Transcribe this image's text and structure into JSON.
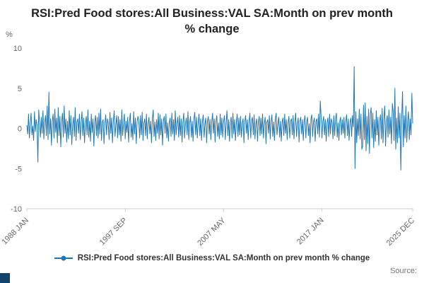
{
  "footer": {
    "source": "Source:"
  },
  "chart_data": {
    "type": "line",
    "title": "RSI:Pred Food stores:All Business:VAL SA:Month on prev month % change",
    "legend": "RSI:Pred Food stores:All Business:VAL SA:Month on prev month % change",
    "ylabel": "%",
    "xlabel": "",
    "ylim": [
      -10,
      10
    ],
    "yticks": [
      10,
      5,
      0,
      -5,
      -10
    ],
    "grid": false,
    "legend_position": "bottom",
    "line_color": "#1f77b4",
    "x_start": "1988 JAN",
    "x_end": "2025 DEC",
    "x_tick_labels": [
      "1988 JAN",
      "1997 SEP",
      "2007 MAY",
      "2017 JAN",
      "2025 DEC"
    ],
    "x_tick_indices": [
      0,
      116,
      232,
      348,
      455
    ],
    "values": [
      0.4,
      -0.7,
      1.8,
      -1.2,
      0.6,
      1.9,
      -0.8,
      0.3,
      -1.5,
      2.1,
      -0.4,
      1.1,
      0.5,
      -4.2,
      2.3,
      0.8,
      -1.1,
      1.4,
      -0.6,
      2.2,
      -1.3,
      0.7,
      1.6,
      -0.9,
      2.8,
      -1.4,
      4.5,
      -0.7,
      1.2,
      -2.1,
      0.9,
      1.8,
      -1.2,
      2.4,
      -0.5,
      1.3,
      -1.8,
      2.6,
      -0.9,
      1.5,
      -2.3,
      0.8,
      1.9,
      -1.1,
      2.8,
      -0.6,
      1.2,
      -1.7,
      0.9,
      -1.3,
      2.2,
      -0.8,
      1.6,
      -2.0,
      0.5,
      1.4,
      -1.0,
      2.6,
      -1.5,
      0.8,
      1.2,
      -0.6,
      1.8,
      -1.4,
      0.7,
      2.1,
      -0.9,
      1.3,
      -1.8,
      0.6,
      1.5,
      -0.8,
      2.3,
      -1.1,
      0.9,
      -1.6,
      1.8,
      -0.5,
      1.2,
      -2.2,
      0.8,
      1.6,
      -0.9,
      1.4,
      -1.2,
      1.9,
      -0.7,
      2.4,
      -1.5,
      0.8,
      1.1,
      -1.9,
      0.6,
      1.7,
      -0.8,
      1.2,
      0.7,
      -1.4,
      2.0,
      -0.6,
      1.3,
      -1.8,
      0.9,
      2.2,
      -1.0,
      0.5,
      1.6,
      -1.2,
      1.5,
      -0.8,
      1.1,
      -1.6,
      2.3,
      -0.9,
      0.7,
      1.8,
      -1.3,
      0.9,
      -0.5,
      1.4,
      -1.7,
      0.8,
      1.9,
      -1.1,
      0.6,
      -1.4,
      2.1,
      -0.7,
      1.3,
      -1.9,
      0.8,
      1.5,
      0.9,
      -1.2,
      1.6,
      -0.8,
      2.0,
      -1.5,
      0.7,
      1.2,
      -0.9,
      1.8,
      -1.3,
      0.6,
      1.4,
      -0.7,
      0.9,
      -1.8,
      1.2,
      2.3,
      -1.0,
      0.8,
      -1.5,
      1.1,
      -0.6,
      1.9,
      -1.3,
      1.7,
      -0.8,
      1.2,
      -2.1,
      0.9,
      1.5,
      -0.6,
      1.8,
      -1.2,
      0.7,
      -1.6,
      0.8,
      1.3,
      -1.0,
      1.9,
      -0.7,
      1.1,
      -1.5,
      2.2,
      -0.8,
      0.6,
      1.4,
      -1.1,
      1.6,
      -0.9,
      1.2,
      -1.7,
      0.8,
      1.9,
      -1.2,
      0.5,
      1.3,
      -0.8,
      2.1,
      -1.4,
      0.7,
      1.5,
      -1.1,
      0.9,
      -1.6,
      1.2,
      2.0,
      -0.8,
      1.4,
      -1.2,
      0.6,
      1.8,
      -0.9,
      1.2,
      -1.5,
      0.8,
      1.7,
      -1.1,
      0.6,
      1.3,
      -1.8,
      0.9,
      1.5,
      -0.7,
      1.1,
      -1.4,
      0.8,
      1.9,
      -0.6,
      1.2,
      -1.7,
      0.9,
      1.6,
      -1.0,
      0.7,
      -1.3,
      1.8,
      -0.8,
      1.3,
      -1.1,
      0.9,
      1.6,
      -1.4,
      0.7,
      2.2,
      -0.9,
      1.1,
      -1.6,
      0.8,
      1.4,
      -1.2,
      1.9,
      -0.7,
      1.1,
      -1.5,
      0.6,
      1.8,
      -1.0,
      1.3,
      -0.8,
      1.5,
      -1.1,
      0.7,
      1.2,
      -1.8,
      0.9,
      1.6,
      -0.6,
      1.1,
      -1.4,
      0.8,
      1.9,
      -1.2,
      0.9,
      1.4,
      -0.8,
      1.7,
      -1.3,
      0.6,
      1.2,
      -1.6,
      0.8,
      1.5,
      -0.9,
      1.3,
      -0.7,
      1.8,
      -1.2,
      0.6,
      1.4,
      -1.9,
      0.8,
      1.1,
      -0.6,
      1.6,
      -1.3,
      0.9,
      1.7,
      -1.0,
      0.8,
      -1.5,
      1.2,
      1.9,
      -0.8,
      0.6,
      1.4,
      -1.1,
      0.9,
      -1.6,
      0.8,
      1.3,
      -0.9,
      1.8,
      -0.6,
      1.1,
      -1.4,
      0.7,
      1.5,
      -1.2,
      0.9,
      1.2,
      -0.8,
      1.6,
      -1.3,
      0.7,
      1.9,
      -1.0,
      0.6,
      1.3,
      -1.7,
      0.9,
      1.4,
      -0.7,
      1.1,
      -1.5,
      0.9,
      1.6,
      -1.2,
      0.8,
      1.4,
      -0.9,
      0.6,
      -1.8,
      1.2,
      1.7,
      -1.0,
      0.8,
      1.3,
      -1.6,
      0.9,
      1.2,
      -0.7,
      1.8,
      -1.1,
      3.4,
      1.5,
      -1.2,
      0.9,
      1.5,
      -0.8,
      1.1,
      -1.6,
      0.7,
      1.3,
      -1.0,
      1.8,
      -0.7,
      1.2,
      0.8,
      -1.3,
      1.6,
      -0.9,
      1.2,
      1.9,
      -1.1,
      0.7,
      -1.5,
      0.9,
      1.4,
      -0.8,
      1.1,
      -0.6,
      1.4,
      -1.2,
      0.8,
      1.7,
      -0.9,
      1.2,
      -1.5,
      0.7,
      1.3,
      -1.0,
      1.6,
      0.2,
      7.7,
      -5.0,
      2.1,
      -1.8,
      1.2,
      -0.9,
      2.4,
      -1.3,
      1.8,
      -2.6,
      -2.2,
      2.9,
      -1.4,
      3.2,
      -2.8,
      1.5,
      -1.9,
      2.4,
      -3.1,
      1.8,
      2.6,
      -1.2,
      1.9,
      -2.4,
      1.1,
      -1.6,
      2.2,
      -0.8,
      1.4,
      -2.1,
      0.9,
      1.7,
      -1.3,
      2.5,
      -1.8,
      1.2,
      2.8,
      -2.2,
      0.9,
      1.6,
      -1.1,
      2.3,
      -0.7,
      1.4,
      -1.9,
      3.1,
      2.2,
      -1.5,
      5.0,
      -2.6,
      1.3,
      -1.8,
      2.7,
      -1.2,
      1.9,
      -5.2,
      1.1,
      4.6,
      -2.3,
      1.6,
      -1.2,
      2.8,
      -1.7,
      0.9,
      2.1,
      -1.4,
      1.2,
      -0.8,
      4.4,
      0.6
    ]
  }
}
